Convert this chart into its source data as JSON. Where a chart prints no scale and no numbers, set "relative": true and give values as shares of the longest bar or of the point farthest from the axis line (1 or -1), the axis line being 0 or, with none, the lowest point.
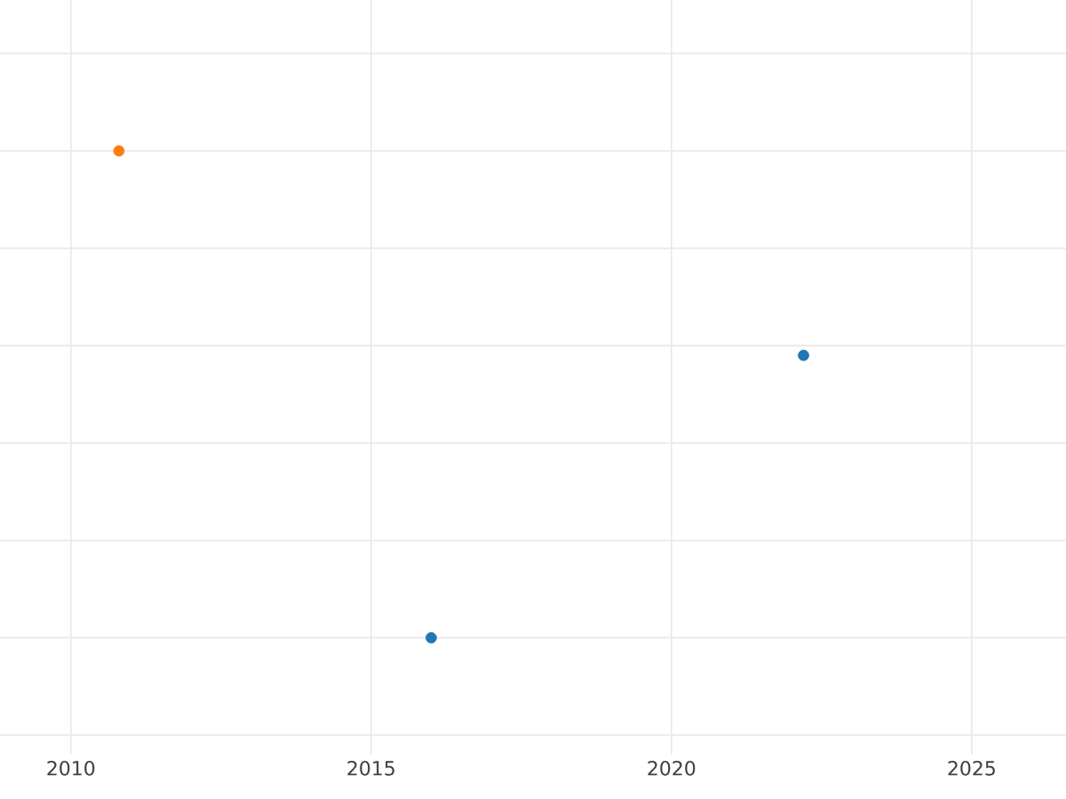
{
  "chart_data": {
    "type": "scatter",
    "relative": true,
    "xlim": [
      2008.82,
      2026.57
    ],
    "xticks": [
      2010,
      2015,
      2020,
      2025
    ],
    "grid": true,
    "series": [
      {
        "color": "#ff7f0e",
        "x": [
          2010.8
        ],
        "values": [
          1
        ]
      },
      {
        "color": "#1f77b4",
        "x": [
          2016.0,
          2022.2
        ],
        "values": [
          0,
          0.58
        ]
      }
    ]
  }
}
